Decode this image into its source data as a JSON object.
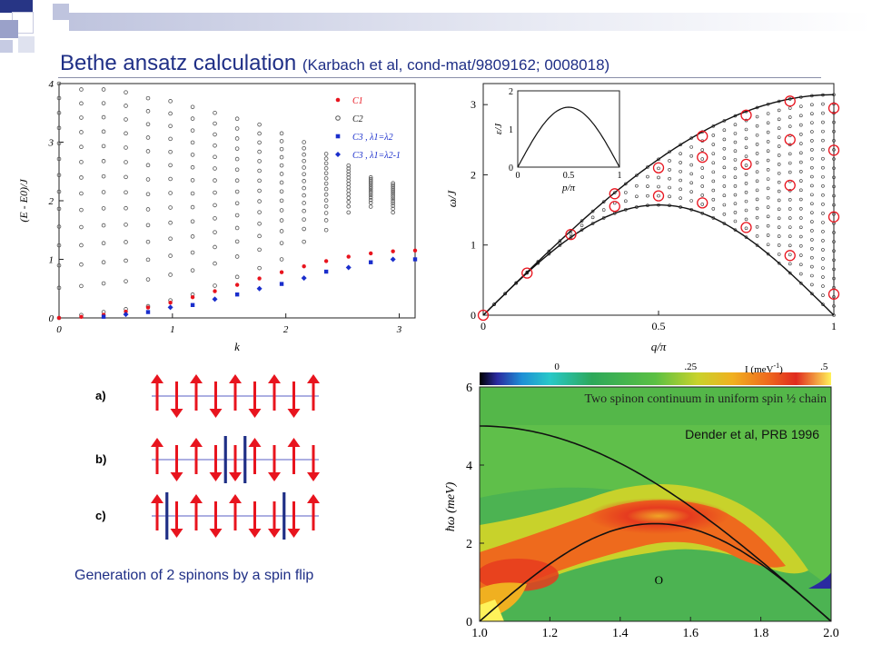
{
  "slide": {
    "title_main": "Bethe ansatz calculation",
    "title_citation": "(Karbach et al, cond-mat/9809162; 0008018)",
    "caption": "Generation of 2 spinons by a spin flip",
    "accent_color": "#1f2f86"
  },
  "chart_data": [
    {
      "type": "scatter",
      "xlabel": "k",
      "ylabel": "(E - E0)/J",
      "xlim": [
        0,
        3.14
      ],
      "ylim": [
        0,
        4
      ],
      "x_ticks": [
        "0",
        "1",
        "2",
        "3"
      ],
      "y_ticks": [
        "0",
        "1",
        "2",
        "3",
        "4"
      ],
      "legend_position": "top-right",
      "legend": [
        "C1",
        "C2",
        "C3 , λ1=λ2",
        "C3 , λ1=λ2-1"
      ],
      "series": [
        {
          "name": "C1",
          "color": "#e8141e",
          "marker": "circle-filled",
          "x": [
            0,
            0.196,
            0.393,
            0.589,
            0.785,
            0.982,
            1.178,
            1.374,
            1.571,
            1.767,
            1.963,
            2.16,
            2.356,
            2.553,
            2.749,
            2.945,
            3.14
          ],
          "y": [
            0,
            0.018,
            0.054,
            0.108,
            0.177,
            0.26,
            0.354,
            0.457,
            0.564,
            0.674,
            0.78,
            0.88,
            0.97,
            1.045,
            1.102,
            1.137,
            1.15
          ]
        },
        {
          "name": "C3 , λ1=λ2",
          "color": "#1a2ecc",
          "marker": "square-filled",
          "x": [
            0.393,
            0.785,
            1.178,
            1.571,
            1.963,
            2.356,
            2.749,
            3.14
          ],
          "y": [
            0.02,
            0.1,
            0.22,
            0.4,
            0.58,
            0.79,
            0.95,
            1.0
          ]
        },
        {
          "name": "C3 , λ1=λ2-1",
          "color": "#1a2ecc",
          "marker": "diamond-filled",
          "x": [
            0.589,
            0.982,
            1.374,
            1.767,
            2.16,
            2.553,
            2.945
          ],
          "y": [
            0.06,
            0.18,
            0.32,
            0.5,
            0.68,
            0.86,
            1.0
          ]
        },
        {
          "name": "C2",
          "color": "#555555",
          "marker": "circle-open",
          "x": [
            0,
            0.196,
            0.393,
            0.589,
            0.785,
            0.982,
            1.178,
            1.374,
            1.571,
            1.767,
            1.963,
            2.16,
            2.356,
            2.553,
            2.749,
            2.945
          ],
          "ymin": [
            0,
            0.05,
            0.1,
            0.15,
            0.2,
            0.3,
            0.4,
            0.55,
            0.7,
            0.85,
            1.0,
            1.3,
            1.5,
            1.8,
            1.9,
            1.8
          ],
          "ymax": [
            4.0,
            3.9,
            3.9,
            3.85,
            3.75,
            3.7,
            3.6,
            3.5,
            3.4,
            3.3,
            3.15,
            3.0,
            2.8,
            2.6,
            2.4,
            2.3
          ]
        }
      ]
    },
    {
      "type": "scatter",
      "xlabel": "q/π",
      "ylabel": "ω/J",
      "xlim": [
        0,
        1
      ],
      "ylim": [
        0,
        3.3
      ],
      "x_ticks": [
        "0",
        "0.5",
        "1"
      ],
      "y_ticks": [
        "0",
        "1",
        "2",
        "3"
      ],
      "boundaries": [
        "lower: (π/2)|sin(πq)|",
        "upper: π|sin(πq/2)|"
      ],
      "highlighted_points": {
        "x": [
          0,
          0.125,
          0.25,
          0.375,
          0.375,
          0.5,
          0.5,
          0.625,
          0.625,
          0.625,
          0.75,
          0.75,
          0.75,
          0.875,
          0.875,
          0.875,
          0.875,
          1,
          1,
          1,
          1
        ],
        "y": [
          0,
          0.6,
          1.15,
          1.55,
          1.73,
          1.7,
          2.1,
          1.6,
          2.25,
          2.55,
          1.25,
          2.15,
          2.85,
          0.85,
          1.85,
          2.5,
          3.05,
          0.3,
          1.4,
          2.35,
          2.95
        ]
      },
      "inset": {
        "xlabel": "p/π",
        "ylabel": "ε/J",
        "xlim": [
          0,
          1
        ],
        "ylim": [
          0,
          2
        ],
        "x_ticks": [
          "0",
          "0.5",
          "1"
        ],
        "y_ticks": [
          "0",
          "1",
          "2"
        ],
        "curve": "(π/2) sin(πp)"
      }
    },
    {
      "type": "heatmap",
      "title": "Two spinon continuum in uniform spin ½ chain",
      "annotation": "Dender et al, PRB 1996",
      "ylabel": "ħω (meV)",
      "xlim": [
        1.0,
        2.0
      ],
      "ylim": [
        0,
        6
      ],
      "x_ticks": [
        "1.0",
        "1.2",
        "1.4",
        "1.6",
        "1.8",
        "2.0"
      ],
      "y_ticks": [
        "0",
        "2",
        "4",
        "6"
      ],
      "colorbar": {
        "label": "I (meV",
        "label_exp": "-1",
        "label_close": ")",
        "ticks": [
          "0",
          ".25",
          ".5"
        ]
      },
      "boundaries": [
        "upper: 5 sin(πx/2)",
        "lower: 2.5 |sin(πx)|"
      ],
      "marker": "O"
    }
  ],
  "spin_chains": {
    "rows": [
      {
        "label": "a)",
        "spins": [
          "up",
          "down",
          "up",
          "down",
          "up",
          "down",
          "up",
          "down",
          "up"
        ],
        "walls": []
      },
      {
        "label": "b)",
        "spins": [
          "up",
          "down",
          "up",
          "down",
          "down",
          "up",
          "down",
          "up",
          "down"
        ],
        "walls": [
          3.5,
          4.5
        ]
      },
      {
        "label": "c)",
        "spins": [
          "up",
          "down",
          "up",
          "down",
          "up",
          "down",
          "down",
          "down",
          "up"
        ],
        "walls": [
          0.5,
          6.5
        ]
      }
    ],
    "arrow_color": "#e8141e",
    "wall_color": "#1f2f86"
  }
}
